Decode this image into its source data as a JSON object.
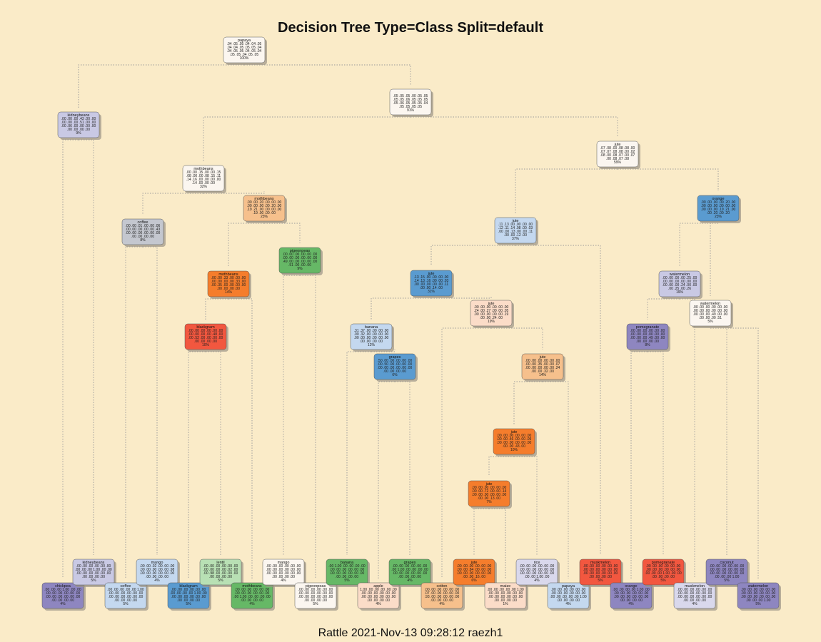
{
  "title": "Decision Tree Type=Class Split=default",
  "footer": "Rattle 2021-Nov-13 09:28:12 raezh1",
  "colors": {
    "background": "#faebc8",
    "edge": "#9a9a9a",
    "purple": "#8e86c0",
    "lavender": "#c9c9e4",
    "pale_lavender": "#d9d8ec",
    "white": "#fbf6f0",
    "light_blue": "#c4d8ef",
    "blue": "#5a9bd0",
    "green": "#66b866",
    "light_green": "#b8e0b4",
    "red": "#f2573f",
    "orange": "#f57d2c",
    "light_orange": "#f6c08c",
    "peach": "#fbdcc8",
    "grey": "#c4c7cf"
  },
  "nodes": [
    {
      "id": "n1",
      "label": "papaya",
      "rows": [
        ".04 .05 .05 .04 .04 .05",
        ".04 .04 .05 .05 .05 .04",
        ".04 .05 .05 .04 .05 .04",
        ".05 .05 .04 .05 .05"
      ],
      "pct": "100%"
    },
    {
      "id": "n2",
      "label": "kidneybeans",
      "rows": [
        ".00 .00 .00 .43 .00 .00",
        ".00 .00 .00 .51 .00 .00",
        ".00 .06 .00 .00 .00 .00",
        ".00 .00 .00 .00"
      ],
      "pct": "9%"
    },
    {
      "id": "n3",
      "label": "",
      "rows": [
        ".05 .05 .05 .00 .05 .05",
        ".05 .05 .06 .05 .05 .05",
        ".05 .06 .05 .05 .05 .04",
        ".05 .05 .05 .05"
      ],
      "pct": "91%"
    },
    {
      "id": "n6",
      "label": "mothbeans",
      "rows": [
        ".00 .00 .15 .00 .00 .15",
        ".08 .00 .00 .08 .15 .11",
        ".14 .16 .00 .00 .00 .00",
        ".14 .00 .00 .00"
      ],
      "pct": "32%"
    },
    {
      "id": "n7",
      "label": "jute",
      "rows": [
        ".07 .08 .00 .08 .08 .00",
        ".07 .07 .08 .08 .00 .02",
        ".08 .00 .08 .07 .00 .07",
        ".00 .08 .07 .08"
      ],
      "pct": "59%"
    },
    {
      "id": "n12",
      "label": "coffee",
      "rows": [
        ".00 .00 .01 .00 .00 .06",
        ".00 .00 .00 .00 .00 .43",
        ".00 .00 .00 .00 .00 .00",
        ".00 .00 .00 .00"
      ],
      "pct": "8%"
    },
    {
      "id": "n13",
      "label": "mothbeans",
      "rows": [
        ".00 .00 .20 .00 .00 .00",
        ".00 .00 .00 .00 .20 .00",
        ".19 .21 .00 .00 .00 .00",
        ".19 .00 .00 .00"
      ],
      "pct": "23%"
    },
    {
      "id": "n14",
      "label": "jute",
      "rows": [
        ".11 .13 .00 .00 .00 .00",
        ".12 .11 .14 .08 .00 .03",
        ".00 .00 .13 .00 .00 .11",
        ".00 .00 .12 .00"
      ],
      "pct": "37%"
    },
    {
      "id": "n15",
      "label": "orange",
      "rows": [
        ".00 .00 .00 .00 .20 .00",
        ".00 .00 .00 .00 .00 .00",
        ".00 .00 .00 .19 .21 .00",
        ".00 .20 .00 .20"
      ],
      "pct": "23%"
    },
    {
      "id": "n27",
      "label": "pigeonpeas",
      "rows": [
        ".00 .00 .00 .00 .00 .00",
        ".00 .00 .00 .00 .00 .00",
        ".49 .00 .00 .00 .00 .00",
        ".51 .00 .00 .00"
      ],
      "pct": "9%"
    },
    {
      "id": "n26",
      "label": "mothbeans",
      "rows": [
        ".00 .00 .33 .00 .00 .00",
        ".00 .00 .00 .00 .33 .00",
        ".00 .35 .00 .00 .00 .00",
        ".00 .00 .00 .00"
      ],
      "pct": "14%"
    },
    {
      "id": "n28",
      "label": "jute",
      "rows": [
        ".13 .15 .00 .00 .00 .00",
        ".14 .13 .16 .00 .00 .03",
        ".00 .00 .00 .00 .00 .11",
        ".00 .00 .14 .00"
      ],
      "pct": "31%"
    },
    {
      "id": "n30",
      "label": "watermelon",
      "rows": [
        ".00 .00 .00 .00 .25 .00",
        ".00 .00 .00 .00 .00 .00",
        ".00 .00 .00 .24 .00 .00",
        ".00 .25 .00 .26"
      ],
      "pct": "19%"
    },
    {
      "id": "n31",
      "label": "watermelon",
      "rows": [
        ".00 .00 .00 .00 .00 .00",
        ".00 .00 .00 .00 .00 .00",
        ".00 .00 .00 .49 .00 .00",
        ".00 .00 .00 .51"
      ],
      "pct": "5%"
    },
    {
      "id": "n52",
      "label": "blackgram",
      "rows": [
        ".00 .00 .00 .00 .00 .00",
        ".00 .00 .00 .00 .48 .00",
        ".00 .52 .00 .00 .00 .00",
        ".00 .00 .00 .00"
      ],
      "pct": "10%"
    },
    {
      "id": "n56",
      "label": "banana",
      "rows": [
        ".31 .37 .00 .00 .00 .00",
        ".00 .32 .00 .00 .00 .00",
        ".00 .00 .00 .00 .00 .00",
        ".00 .00 .00 .00"
      ],
      "pct": "12%"
    },
    {
      "id": "n57",
      "label": "jute",
      "rows": [
        ".00 .00 .00 .00 .00 .00",
        ".24 .00 .27 .00 .00 .05",
        ".00 .00 .00 .00 .00 .19",
        ".00 .00 .24 .00"
      ],
      "pct": "19%"
    },
    {
      "id": "n60",
      "label": "pomegranate",
      "rows": [
        ".00 .00 .00 .00 .00 .00",
        ".00 .00 .00 .00 .00 .00",
        ".00 .00 .00 .49 .00 .00",
        ".00 .00 .00 .00"
      ],
      "pct": "8%"
    },
    {
      "id": "n113",
      "label": "grapes",
      "rows": [
        ".50 .00 .00 .00 .00 .00",
        ".00 .50 .00 .00 .00 .00",
        ".00 .00 .00 .00 .00 .00",
        ".00 .00 .00 .00"
      ],
      "pct": "6%"
    },
    {
      "id": "n114",
      "label": "jute",
      "rows": [
        ".00 .00 .00 .00 .00 .00",
        ".00 .00 .35 .00 .00 .07",
        ".00 .00 .00 .00 .00 .24",
        ".00 .00 .32 .00"
      ],
      "pct": "14%"
    },
    {
      "id": "n228",
      "label": "jute",
      "rows": [
        ".00 .00 .00 .00 .00 .00",
        ".00 .00 .46 .00 .00 .09",
        ".00 .00 .00 .00 .00 .00",
        ".00 .00 .43 .00"
      ],
      "pct": "10%"
    },
    {
      "id": "n456",
      "label": "jute",
      "rows": [
        ".00 .00 .00 .00 .00 .00",
        ".00 .00 .72 .00 .00 .14",
        ".00 .00 .00 .00 .00 .00",
        ".00 .00 .13 .00"
      ],
      "pct": "7%"
    },
    {
      "id": "l1",
      "label": "chickpea",
      "rows": [
        ".00 .00 .00 1.00 .00 .00",
        ".00 .00 .00 .00 .00 .00",
        ".00 .00 .00 .00 .00 .00",
        ".00 .00 .00 .00"
      ],
      "pct": "4%"
    },
    {
      "id": "l2",
      "label": "kidneybeans",
      "rows": [
        ".00 .00 .00 .00 .00 .00",
        ".00 .00 .00 1.00 .00 .00",
        ".00 .00 .00 .00 .00 .00",
        ".00 .00 .00 .00"
      ],
      "pct": "5%"
    },
    {
      "id": "l3",
      "label": "coffee",
      "rows": [
        ".00 .00 .00 .00 .00 1.00",
        ".00 .00 .00 .00 .00 .00",
        ".00 .00 .00 .00 .00 .00",
        ".00 .00 .00 .00"
      ],
      "pct": "5%"
    },
    {
      "id": "l4",
      "label": "mango",
      "rows": [
        ".00 .00 .02 .00 .00 .00",
        ".00 .00 .00 .00 .00 .98",
        ".00 .00 .00 .00 .00 .00",
        ".00 .00 .00 .00"
      ],
      "pct": "4%"
    },
    {
      "id": "l5",
      "label": "blackgram",
      "rows": [
        ".00 .00 .00 .00 .00 .00",
        ".00 .00 .00 .00 1.00 .00",
        ".00 .00 .00 .00 .00 .00",
        ".00 .00 .00 .00"
      ],
      "pct": "5%"
    },
    {
      "id": "l6",
      "label": "lentil",
      "rows": [
        ".00 .00 .00 .00 .00 .00",
        ".00 .00 .00 .00 .02 .00",
        ".00 .98 .00 .00 .00 .00",
        ".00 .00 .00 .00"
      ],
      "pct": "5%"
    },
    {
      "id": "l7",
      "label": "mothbeans",
      "rows": [
        ".00 .00 .00 .00 .00 .00",
        ".00 .00 .00 .00 .00 .00",
        ".00 1.00 .00 .00 .00 .00",
        ".00 .00 .00 .00"
      ],
      "pct": "4%"
    },
    {
      "id": "l8",
      "label": "mango",
      "rows": [
        ".00 .00 .00 .00 .00 .00",
        ".00 .00 .00 .00 .00 .00",
        ".00 .00 .00 .00 .00 .00",
        ".00 .00 .00 .00"
      ],
      "pct": "4%"
    },
    {
      "id": "l9",
      "label": "pigeonpeas",
      "rows": [
        ".00 .00 .00 .00 .00 .00",
        ".00 .00 .00 .00 .00 .00",
        ".00 .00 .00 .00 .00 .00",
        ".00 .00 .00 .00"
      ],
      "pct": "5%"
    },
    {
      "id": "l10",
      "label": "banana",
      "rows": [
        ".00 1.00 .00 .00 .00 .00",
        ".00 .00 .00 .00 .00 .00",
        ".00 .00 .00 .00 .00 .00",
        ".00 .00 .00 .00"
      ],
      "pct": "5%"
    },
    {
      "id": "l11",
      "label": "apple",
      "rows": [
        "1.00 .00 .00 .00 .00 .00",
        ".00 .00 .00 .00 .00 .00",
        ".00 .00 .00 .00 .00 .00",
        ".00 .00 .00 .00"
      ],
      "pct": "4%"
    },
    {
      "id": "l12",
      "label": "grapes",
      "rows": [
        ".00 .00 .00 .00 .00 .00",
        ".00 1.00 .00 .00 .00 .00",
        ".00 .00 .00 .00 .00 .00",
        ".00 .00 .00 .00"
      ],
      "pct": "4%"
    },
    {
      "id": "l13",
      "label": "cotton",
      "rows": [
        ".00 .00 .00 .00 .00 .00",
        ".07 .00 .00 .00 .00 .00",
        ".93 .00 .00 .00 .00 .00",
        ".00 .00 .00 .00"
      ],
      "pct": "4%"
    },
    {
      "id": "l14",
      "label": "jute",
      "rows": [
        ".00 .00 .00 .00 .00 .00",
        ".00 .00 .84 .00 .00 .00",
        ".00 .00 .00 .00 .00 .00",
        ".00 .00 .16 .00"
      ],
      "pct": "6%"
    },
    {
      "id": "l15",
      "label": "maize",
      "rows": [
        ".00 .00 .00 .00 .00 1.00",
        ".00 .00 .00 .00 .00 .00",
        ".00 .00 .00 .00 .00 .00",
        ".00 .00 .00 .00"
      ],
      "pct": "1%"
    },
    {
      "id": "l16",
      "label": "rice",
      "rows": [
        ".00 .00 .00 .00 .00 .00",
        ".00 .00 .00 .00 .00 .00",
        ".00 .00 .00 .00 .00 .00",
        ".00 .00 1.00 .00"
      ],
      "pct": "4%"
    },
    {
      "id": "l17",
      "label": "papaya",
      "rows": [
        ".00 .00 .00 .00 .00 .00",
        ".00 .00 .00 .00 .00 .00",
        ".00 .00 .00 .00 .00 1.00",
        ".00 .00 .00 .00"
      ],
      "pct": "4%"
    },
    {
      "id": "l18",
      "label": "muskmelon",
      "rows": [
        ".00 .00 .00 .00 .00 .00",
        ".00 .00 .00 .00 .00 .00",
        ".00 .00 .00 .00 .00 .00",
        ".00 .00 .00 .00"
      ],
      "pct": "5%"
    },
    {
      "id": "l19",
      "label": "orange",
      "rows": [
        ".00 .00 .00 .00 1.00 .00",
        ".00 .00 .00 .00 .00 .00",
        ".00 .00 .00 .00 .00 .00",
        ".00 .00 .00 .00"
      ],
      "pct": "4%"
    },
    {
      "id": "l20",
      "label": "pomegranate",
      "rows": [
        ".00 .00 .00 .00 .00 .00",
        ".00 .00 .00 .00 .00 .00",
        ".00 .00 .00 1.00 .00 .00",
        ".00 .00 .00 .00"
      ],
      "pct": "5%"
    },
    {
      "id": "l21",
      "label": "muskmelon",
      "rows": [
        ".00 .00 .00 .00 .00 .00",
        ".00 .00 .00 .00 .00 .00",
        ".00 .00 .00 .00 .00 .00",
        ".00 .00 .00 .00"
      ],
      "pct": "4%"
    },
    {
      "id": "l22",
      "label": "coconut",
      "rows": [
        ".00 .00 .00 .00 .00 .00",
        ".00 .00 .00 .00 .00 .00",
        ".00 .00 .00 .00 .00 .00",
        ".00 .00 .00 1.00"
      ],
      "pct": "5%"
    },
    {
      "id": "l23",
      "label": "watermelon",
      "rows": [
        ".00 .00 .00 .00 .00 .00",
        ".00 .00 .00 .00 .00 .00",
        ".00 .00 .00 .00 .00 .00",
        ".00 .00 .00 1.00"
      ],
      "pct": "5%"
    }
  ]
}
